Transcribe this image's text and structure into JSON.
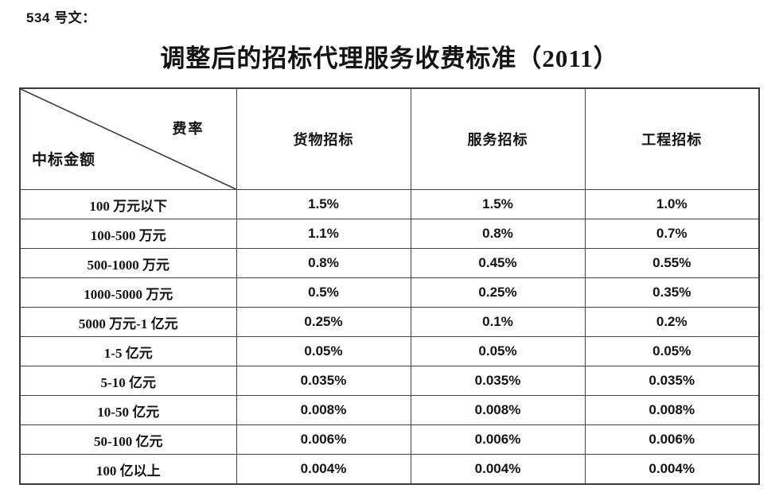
{
  "page": {
    "doc_label": "534 号文：",
    "title": "调整后的招标代理服务收费标准（2011）"
  },
  "table": {
    "corner": {
      "top_right": "费率",
      "bottom_left": "中标金额"
    },
    "columns": [
      "货物招标",
      "服务招标",
      "工程招标"
    ],
    "rows": [
      {
        "label": "100 万元以下",
        "values": [
          "1.5%",
          "1.5%",
          "1.0%"
        ]
      },
      {
        "label": "100-500 万元",
        "values": [
          "1.1%",
          "0.8%",
          "0.7%"
        ]
      },
      {
        "label": "500-1000 万元",
        "values": [
          "0.8%",
          "0.45%",
          "0.55%"
        ]
      },
      {
        "label": "1000-5000 万元",
        "values": [
          "0.5%",
          "0.25%",
          "0.35%"
        ]
      },
      {
        "label": "5000 万元-1 亿元",
        "values": [
          "0.25%",
          "0.1%",
          "0.2%"
        ]
      },
      {
        "label": "1-5 亿元",
        "values": [
          "0.05%",
          "0.05%",
          "0.05%"
        ]
      },
      {
        "label": "5-10 亿元",
        "values": [
          "0.035%",
          "0.035%",
          "0.035%"
        ]
      },
      {
        "label": "10-50 亿元",
        "values": [
          "0.008%",
          "0.008%",
          "0.008%"
        ]
      },
      {
        "label": "50-100 亿元",
        "values": [
          "0.006%",
          "0.006%",
          "0.006%"
        ]
      },
      {
        "label": "100 亿以上",
        "values": [
          "0.004%",
          "0.004%",
          "0.004%"
        ]
      }
    ]
  },
  "colors": {
    "background": "#ffffff",
    "text": "#141414",
    "border": "#3b3b3b"
  }
}
